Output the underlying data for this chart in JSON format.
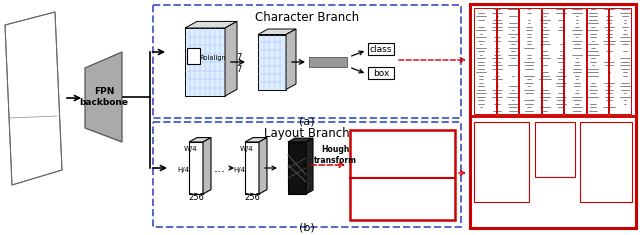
{
  "bg_color": "#ffffff",
  "fpn_text": "FPN\nbackbone",
  "char_branch_title": "Character Branch",
  "layout_branch_title": "Layout Branch",
  "roialign_label": "RoIalign",
  "hough_label": "Hough\ntransform",
  "label_a": "(a)",
  "label_b": "(b)",
  "seven_top": "7",
  "seven_left": "7",
  "w4_top1": "W/4",
  "h4_left1": "H/4",
  "w4_top2": "W/4",
  "h4_left2": "H/4",
  "dim256_1": "256",
  "dim256_2": "256",
  "class_label": "class",
  "box_label": "box",
  "dashed_box_color": "#5566cc",
  "red_color": "#cc0000",
  "black_color": "#000000",
  "white_color": "#ffffff",
  "grid_color": "#aabbff",
  "gray_fpn": "#aaaaaa",
  "gray_light": "#dddddd",
  "gray_mid": "#bbbbbb",
  "gray_dark": "#555555",
  "dark_feat": "#111111",
  "dark_feat_top": "#333333",
  "dark_feat_right": "#222222",
  "fc_gray": "#999999"
}
